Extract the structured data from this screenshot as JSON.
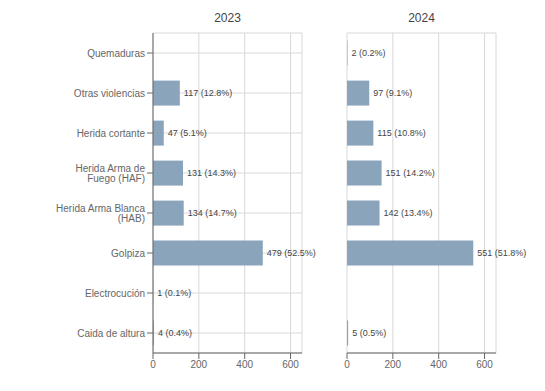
{
  "chart_data": [
    {
      "type": "bar",
      "orientation": "horizontal",
      "title": "2023",
      "categories": [
        "Quemaduras",
        "Otras violencias",
        "Herida cortante",
        "Herida Arma de Fuego (HAF)",
        "Herida Arma Blanca (HAB)",
        "Golpiza",
        "Electrocución",
        "Caida de altura"
      ],
      "values": [
        0,
        117,
        47,
        131,
        134,
        479,
        1,
        4
      ],
      "value_labels": [
        null,
        "117 (12.8%)",
        "47 (5.1%)",
        "131 (14.3%)",
        "134 (14.7%)",
        "479 (52.5%)",
        "1 (0.1%)",
        "4 (0.4%)"
      ],
      "color": "#8aa4bc",
      "xlim": [
        0,
        650
      ],
      "xticks": [
        0,
        200,
        400,
        600
      ],
      "grid": true,
      "data_labels": true
    },
    {
      "type": "bar",
      "orientation": "horizontal",
      "title": "2024",
      "categories": [
        "Quemaduras",
        "Otras violencias",
        "Herida cortante",
        "Herida Arma de Fuego (HAF)",
        "Herida Arma Blanca (HAB)",
        "Golpiza",
        "Electrocución",
        "Caida de altura"
      ],
      "values": [
        2,
        97,
        115,
        151,
        142,
        551,
        0,
        5
      ],
      "value_labels": [
        "2 (0.2%)",
        "97 (9.1%)",
        "115 (10.8%)",
        "151 (14.2%)",
        "142 (13.4%)",
        "551 (51.8%)",
        null,
        "5 (0.5%)"
      ],
      "color": "#8aa4bc",
      "xlim": [
        0,
        650
      ],
      "xticks": [
        0,
        200,
        400,
        600
      ],
      "grid": true,
      "data_labels": true,
      "tick_labels": "x"
    }
  ]
}
